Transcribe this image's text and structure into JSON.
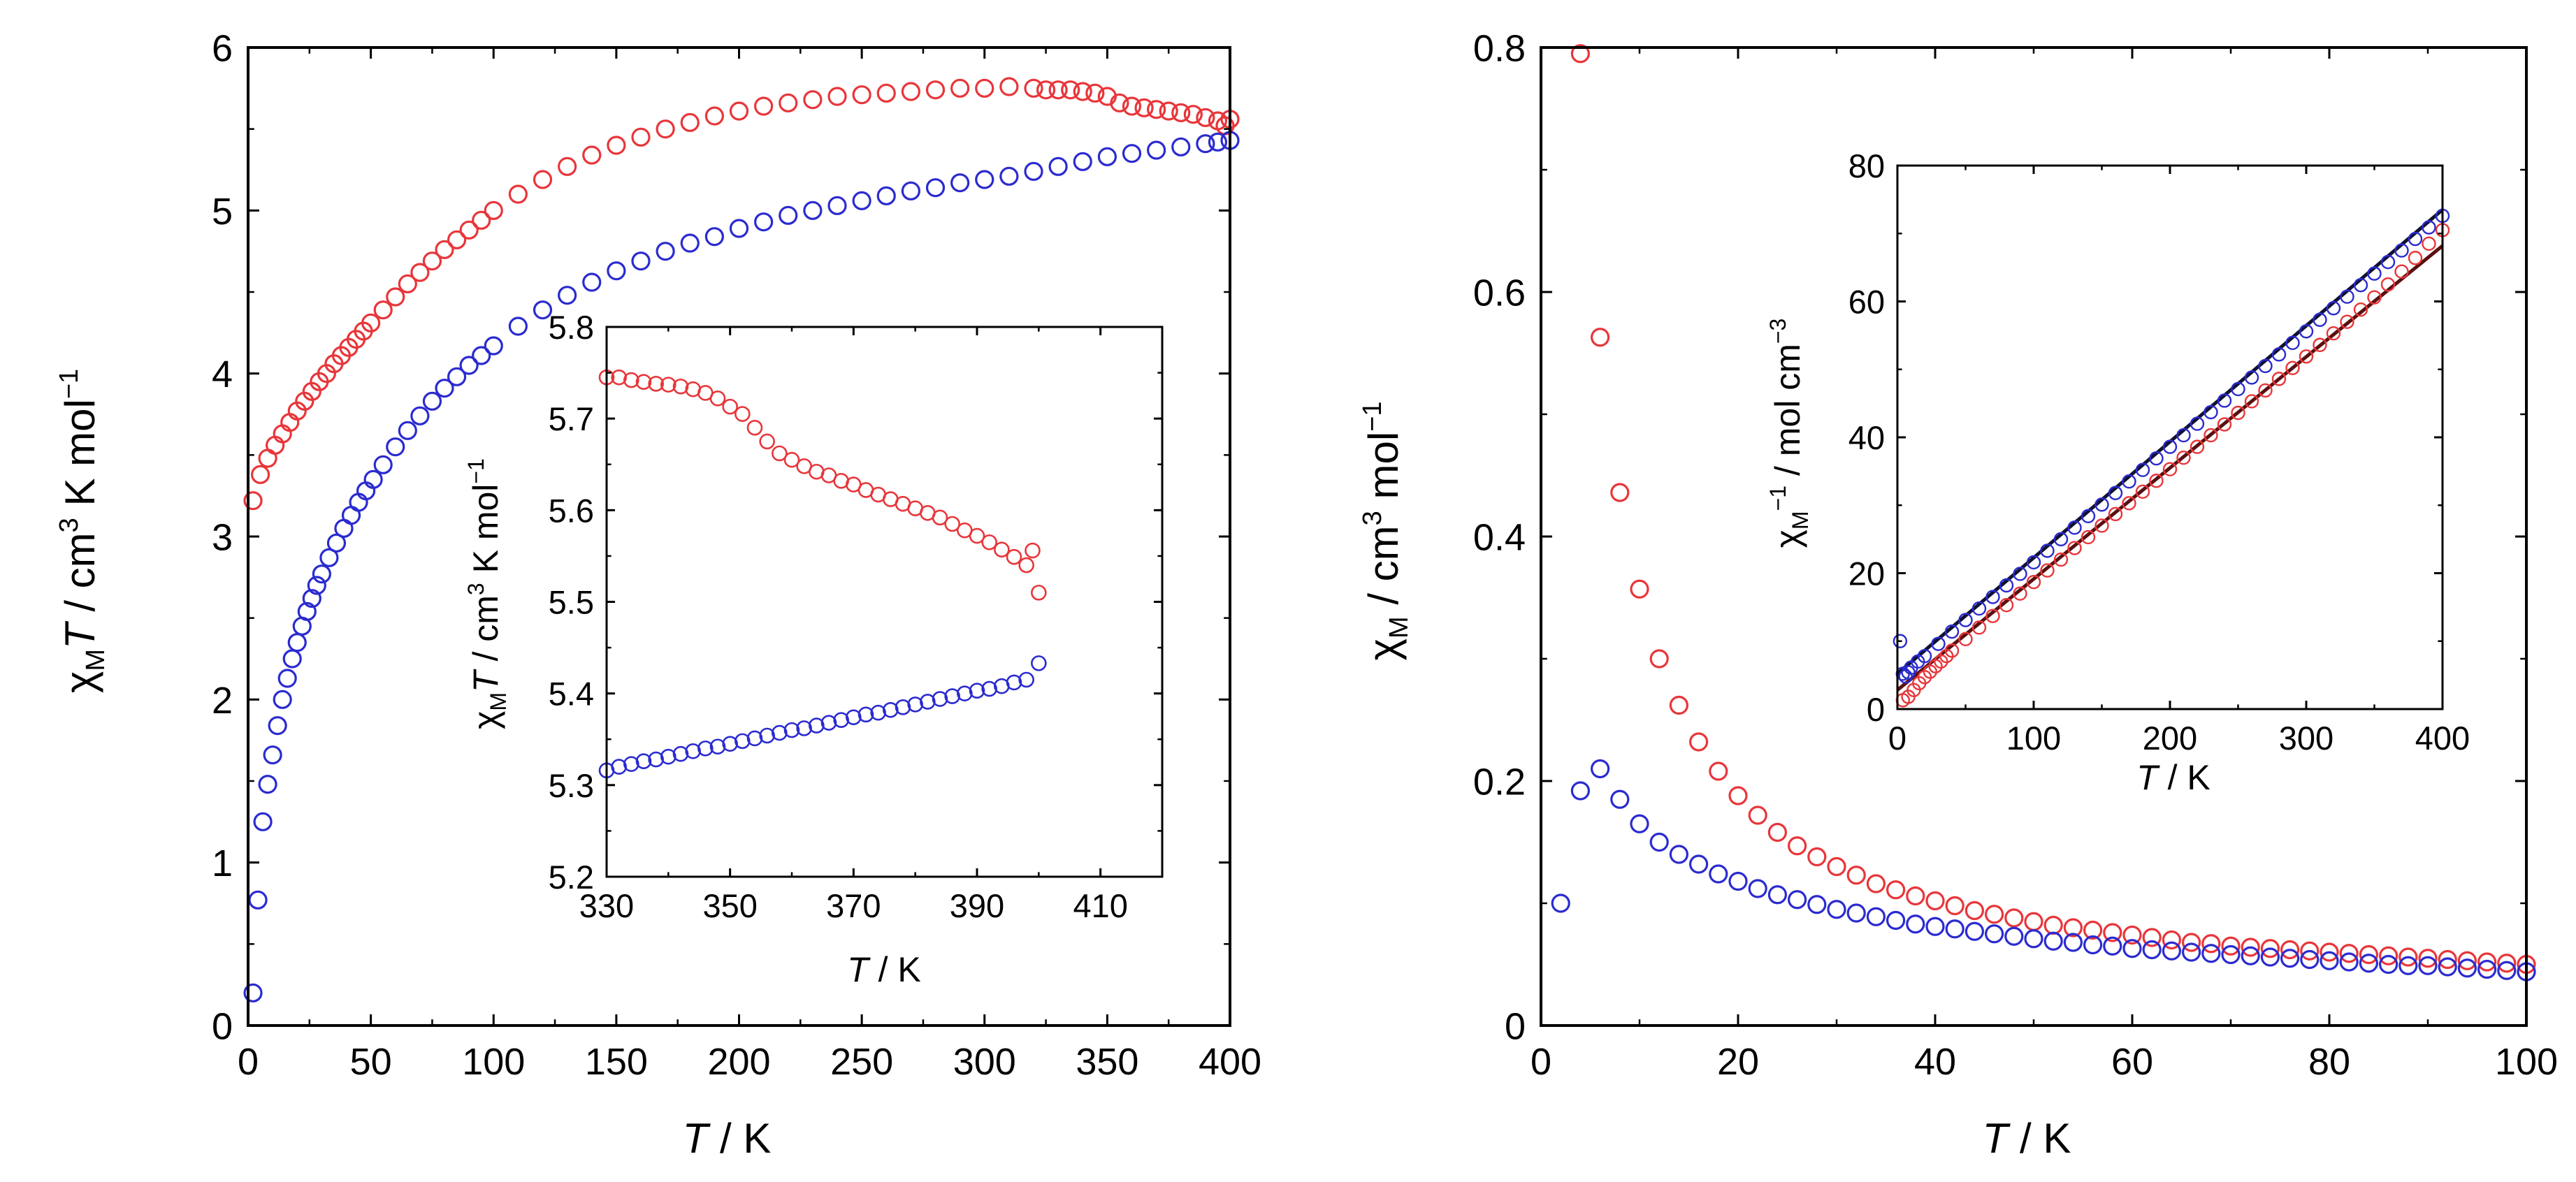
{
  "colors": {
    "red": "#e8363a",
    "blue": "#2b2bd0",
    "axis": "#000000",
    "fit_dark": "#111133",
    "fit_red": "#5a1010"
  },
  "chart_data": [
    {
      "id": "main_left",
      "type": "scatter",
      "title": "",
      "xlabel": {
        "italic": "T",
        "rest": " / K"
      },
      "ylabel": {
        "chi": "χ",
        "sub": "M",
        "italic": "T",
        "rest": " / cm",
        "sup1": "3",
        "rest2": " K mol",
        "sup2": "−1"
      },
      "xlim": [
        0,
        400
      ],
      "ylim": [
        0,
        6
      ],
      "xticks": [
        0,
        50,
        100,
        150,
        200,
        250,
        300,
        350,
        400
      ],
      "xtick_labels": [
        "0",
        "50",
        "100",
        "150",
        "200",
        "250",
        "300",
        "350",
        "400"
      ],
      "yticks": [
        0,
        1,
        2,
        3,
        4,
        5,
        6
      ],
      "ytick_labels": [
        "0",
        "1",
        "2",
        "3",
        "4",
        "5",
        "6"
      ],
      "series": [
        {
          "name": "red",
          "color": "#e8363a",
          "x": [
            2,
            5,
            8,
            11,
            14,
            17,
            20,
            23,
            26,
            29,
            32,
            35,
            38,
            41,
            44,
            47,
            50,
            55,
            60,
            65,
            70,
            75,
            80,
            85,
            90,
            95,
            100,
            110,
            120,
            130,
            140,
            150,
            160,
            170,
            180,
            190,
            200,
            210,
            220,
            230,
            240,
            250,
            260,
            270,
            280,
            290,
            300,
            310,
            320,
            325,
            330,
            335,
            340,
            345,
            350,
            355,
            360,
            365,
            370,
            375,
            380,
            385,
            390,
            395,
            398,
            400
          ],
          "y": [
            3.22,
            3.38,
            3.48,
            3.56,
            3.63,
            3.7,
            3.77,
            3.83,
            3.89,
            3.95,
            4.0,
            4.06,
            4.11,
            4.16,
            4.21,
            4.26,
            4.31,
            4.39,
            4.47,
            4.55,
            4.62,
            4.69,
            4.76,
            4.82,
            4.88,
            4.94,
            5.0,
            5.1,
            5.19,
            5.27,
            5.34,
            5.4,
            5.45,
            5.5,
            5.54,
            5.58,
            5.61,
            5.64,
            5.66,
            5.68,
            5.7,
            5.71,
            5.72,
            5.73,
            5.74,
            5.75,
            5.75,
            5.76,
            5.75,
            5.74,
            5.74,
            5.74,
            5.73,
            5.72,
            5.7,
            5.66,
            5.64,
            5.63,
            5.62,
            5.61,
            5.6,
            5.59,
            5.57,
            5.55,
            5.52,
            5.56
          ]
        },
        {
          "name": "blue",
          "color": "#2b2bd0",
          "x": [
            2,
            4,
            6,
            8,
            10,
            12,
            14,
            16,
            18,
            20,
            22,
            24,
            26,
            28,
            30,
            33,
            36,
            39,
            42,
            45,
            48,
            51,
            55,
            60,
            65,
            70,
            75,
            80,
            85,
            90,
            95,
            100,
            110,
            120,
            130,
            140,
            150,
            160,
            170,
            180,
            190,
            200,
            210,
            220,
            230,
            240,
            250,
            260,
            270,
            280,
            290,
            300,
            310,
            320,
            330,
            340,
            350,
            360,
            370,
            380,
            390,
            395,
            400
          ],
          "y": [
            0.2,
            0.77,
            1.25,
            1.48,
            1.66,
            1.84,
            2.0,
            2.13,
            2.25,
            2.35,
            2.45,
            2.54,
            2.62,
            2.7,
            2.77,
            2.87,
            2.96,
            3.05,
            3.13,
            3.21,
            3.28,
            3.35,
            3.44,
            3.55,
            3.65,
            3.74,
            3.83,
            3.91,
            3.98,
            4.05,
            4.11,
            4.17,
            4.29,
            4.39,
            4.48,
            4.56,
            4.63,
            4.69,
            4.75,
            4.8,
            4.84,
            4.89,
            4.93,
            4.97,
            5.0,
            5.03,
            5.06,
            5.09,
            5.12,
            5.14,
            5.17,
            5.19,
            5.21,
            5.24,
            5.27,
            5.3,
            5.33,
            5.35,
            5.37,
            5.39,
            5.41,
            5.42,
            5.43
          ]
        }
      ]
    },
    {
      "id": "inset_left",
      "type": "scatter",
      "title": "",
      "xlabel": {
        "italic": "T",
        "rest": " / K"
      },
      "ylabel": {
        "chi": "χ",
        "sub": "M",
        "italic": "T",
        "rest": " / cm",
        "sup1": "3",
        "rest2": " K mol",
        "sup2": "−1"
      },
      "xlim": [
        330,
        420
      ],
      "ylim": [
        5.2,
        5.8
      ],
      "xticks": [
        330,
        350,
        370,
        390,
        410
      ],
      "xtick_labels": [
        "330",
        "350",
        "370",
        "390",
        "410"
      ],
      "yticks": [
        5.2,
        5.3,
        5.4,
        5.5,
        5.6,
        5.7,
        5.8
      ],
      "ytick_labels": [
        "5.2",
        "5.3",
        "5.4",
        "5.5",
        "5.6",
        "5.7",
        "5.8"
      ],
      "series": [
        {
          "name": "red",
          "color": "#e8363a",
          "x": [
            330,
            332,
            334,
            336,
            338,
            340,
            342,
            344,
            346,
            348,
            350,
            352,
            354,
            356,
            358,
            360,
            362,
            364,
            366,
            368,
            370,
            372,
            374,
            376,
            378,
            380,
            382,
            384,
            386,
            388,
            390,
            392,
            394,
            396,
            398,
            399,
            400
          ],
          "y": [
            5.745,
            5.745,
            5.742,
            5.74,
            5.738,
            5.737,
            5.735,
            5.732,
            5.728,
            5.722,
            5.713,
            5.705,
            5.69,
            5.675,
            5.662,
            5.655,
            5.648,
            5.642,
            5.638,
            5.632,
            5.628,
            5.622,
            5.617,
            5.612,
            5.607,
            5.602,
            5.597,
            5.592,
            5.585,
            5.578,
            5.572,
            5.565,
            5.557,
            5.549,
            5.54,
            5.556,
            5.51
          ]
        },
        {
          "name": "blue",
          "color": "#2b2bd0",
          "x": [
            330,
            332,
            334,
            336,
            338,
            340,
            342,
            344,
            346,
            348,
            350,
            352,
            354,
            356,
            358,
            360,
            362,
            364,
            366,
            368,
            370,
            372,
            374,
            376,
            378,
            380,
            382,
            384,
            386,
            388,
            390,
            392,
            394,
            396,
            398,
            400
          ],
          "y": [
            5.316,
            5.32,
            5.323,
            5.326,
            5.328,
            5.331,
            5.334,
            5.337,
            5.34,
            5.342,
            5.345,
            5.348,
            5.351,
            5.354,
            5.357,
            5.36,
            5.362,
            5.365,
            5.368,
            5.371,
            5.374,
            5.377,
            5.379,
            5.382,
            5.385,
            5.388,
            5.391,
            5.394,
            5.397,
            5.4,
            5.403,
            5.405,
            5.408,
            5.412,
            5.415,
            5.433
          ]
        }
      ]
    },
    {
      "id": "main_right",
      "type": "scatter",
      "title": "",
      "xlabel": {
        "italic": "T",
        "rest": " / K"
      },
      "ylabel": {
        "chi": "χ",
        "sub": "M",
        "rest": " / cm",
        "sup1": "3",
        "rest2": " mol",
        "sup2": "−1"
      },
      "xlim": [
        0,
        100
      ],
      "ylim": [
        0,
        0.8
      ],
      "xticks": [
        0,
        20,
        40,
        60,
        80,
        100
      ],
      "xtick_labels": [
        "0",
        "20",
        "40",
        "60",
        "80",
        "100"
      ],
      "yticks": [
        0,
        0.2,
        0.4,
        0.6,
        0.8
      ],
      "ytick_labels": [
        "0",
        "0.2",
        "0.4",
        "0.6",
        "0.8"
      ],
      "series": [
        {
          "name": "red",
          "color": "#e8363a",
          "x": [
            4,
            6,
            8,
            10,
            12,
            14,
            16,
            18,
            20,
            22,
            24,
            26,
            28,
            30,
            32,
            34,
            36,
            38,
            40,
            42,
            44,
            46,
            48,
            50,
            52,
            54,
            56,
            58,
            60,
            62,
            64,
            66,
            68,
            70,
            72,
            74,
            76,
            78,
            80,
            82,
            84,
            86,
            88,
            90,
            92,
            94,
            96,
            98,
            100
          ],
          "y": [
            0.795,
            0.563,
            0.436,
            0.357,
            0.3,
            0.262,
            0.232,
            0.208,
            0.188,
            0.172,
            0.158,
            0.147,
            0.138,
            0.13,
            0.123,
            0.116,
            0.111,
            0.106,
            0.102,
            0.098,
            0.094,
            0.091,
            0.088,
            0.085,
            0.082,
            0.08,
            0.078,
            0.076,
            0.074,
            0.072,
            0.07,
            0.068,
            0.067,
            0.065,
            0.064,
            0.063,
            0.062,
            0.061,
            0.06,
            0.059,
            0.058,
            0.057,
            0.056,
            0.055,
            0.054,
            0.053,
            0.052,
            0.051,
            0.05
          ]
        },
        {
          "name": "blue",
          "color": "#2b2bd0",
          "x": [
            2,
            4,
            6,
            8,
            10,
            12,
            14,
            16,
            18,
            20,
            22,
            24,
            26,
            28,
            30,
            32,
            34,
            36,
            38,
            40,
            42,
            44,
            46,
            48,
            50,
            52,
            54,
            56,
            58,
            60,
            62,
            64,
            66,
            68,
            70,
            72,
            74,
            76,
            78,
            80,
            82,
            84,
            86,
            88,
            90,
            92,
            94,
            96,
            98,
            100
          ],
          "y": [
            0.1,
            0.192,
            0.21,
            0.185,
            0.165,
            0.15,
            0.14,
            0.132,
            0.124,
            0.118,
            0.112,
            0.107,
            0.103,
            0.099,
            0.095,
            0.092,
            0.089,
            0.086,
            0.083,
            0.081,
            0.079,
            0.077,
            0.075,
            0.073,
            0.071,
            0.069,
            0.068,
            0.066,
            0.065,
            0.063,
            0.062,
            0.061,
            0.06,
            0.059,
            0.058,
            0.057,
            0.056,
            0.055,
            0.054,
            0.053,
            0.052,
            0.051,
            0.05,
            0.049,
            0.049,
            0.048,
            0.047,
            0.046,
            0.045,
            0.044
          ]
        }
      ]
    },
    {
      "id": "inset_right",
      "type": "scatter",
      "title": "",
      "xlabel": {
        "italic": "T",
        "rest": " / K"
      },
      "ylabel": {
        "chi": "χ",
        "sub": "M",
        "sup1": "−1",
        "rest": " / mol cm",
        "sup2": "−3"
      },
      "xlim": [
        0,
        400
      ],
      "ylim": [
        0,
        80
      ],
      "xticks": [
        0,
        100,
        200,
        300,
        400
      ],
      "xtick_labels": [
        "0",
        "100",
        "200",
        "300",
        "400"
      ],
      "yticks": [
        0,
        20,
        40,
        60,
        80
      ],
      "ytick_labels": [
        "0",
        "20",
        "40",
        "60",
        "80"
      ],
      "fit_lines": [
        {
          "name": "blue-fit",
          "color": "#111133",
          "x": [
            0,
            400
          ],
          "y": [
            5.2,
            73.5
          ]
        },
        {
          "name": "red-fit",
          "color": "#5a1010",
          "x": [
            0,
            400
          ],
          "y": [
            2.8,
            68.2
          ]
        }
      ],
      "series": [
        {
          "name": "red",
          "color": "#e8363a",
          "x": [
            4,
            8,
            12,
            16,
            20,
            24,
            28,
            32,
            36,
            40,
            50,
            60,
            70,
            80,
            90,
            100,
            110,
            120,
            130,
            140,
            150,
            160,
            170,
            180,
            190,
            200,
            210,
            220,
            230,
            240,
            250,
            260,
            270,
            280,
            290,
            300,
            310,
            320,
            330,
            340,
            350,
            360,
            370,
            380,
            390,
            400
          ],
          "y": [
            1.3,
            1.8,
            2.8,
            3.8,
            4.7,
            5.5,
            6.3,
            7.0,
            7.8,
            8.6,
            10.3,
            12.0,
            13.7,
            15.3,
            17.0,
            18.7,
            20.4,
            22.0,
            23.7,
            25.3,
            27.0,
            28.7,
            30.3,
            32.0,
            33.6,
            35.3,
            37.0,
            38.6,
            40.3,
            41.9,
            43.6,
            45.3,
            46.9,
            48.6,
            50.2,
            51.9,
            53.6,
            55.3,
            57.0,
            58.8,
            60.6,
            62.5,
            64.4,
            66.4,
            68.5,
            70.5
          ]
        },
        {
          "name": "blue",
          "color": "#2b2bd0",
          "x": [
            2,
            4,
            6,
            8,
            10,
            15,
            20,
            30,
            40,
            50,
            60,
            70,
            80,
            90,
            100,
            110,
            120,
            130,
            140,
            150,
            160,
            170,
            180,
            190,
            200,
            210,
            220,
            230,
            240,
            250,
            260,
            270,
            280,
            290,
            300,
            310,
            320,
            330,
            340,
            350,
            360,
            370,
            380,
            390,
            400
          ],
          "y": [
            10.0,
            5.2,
            4.8,
            5.4,
            6.1,
            7.0,
            7.8,
            9.6,
            11.4,
            13.1,
            14.8,
            16.5,
            18.2,
            19.9,
            21.6,
            23.3,
            25.0,
            26.7,
            28.4,
            30.1,
            31.8,
            33.5,
            35.2,
            36.9,
            38.6,
            40.3,
            42.0,
            43.7,
            45.4,
            47.1,
            48.8,
            50.5,
            52.2,
            53.9,
            55.6,
            57.3,
            59.0,
            60.7,
            62.4,
            64.1,
            65.8,
            67.5,
            69.2,
            70.9,
            72.6
          ]
        }
      ]
    }
  ]
}
